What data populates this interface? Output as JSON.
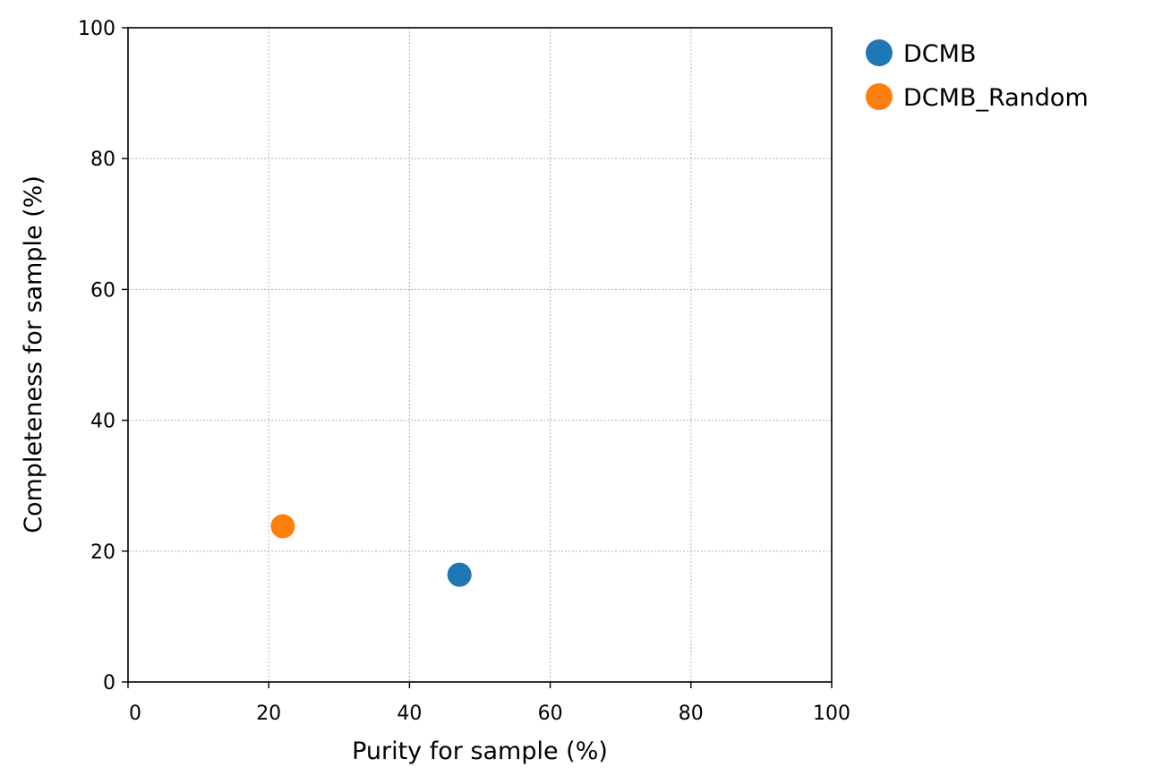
{
  "chart_data": {
    "type": "scatter",
    "title": "",
    "xlabel": "Purity for sample (%)",
    "ylabel": "Completeness for sample (%)",
    "xlim": [
      0,
      100
    ],
    "ylim": [
      0,
      100
    ],
    "xticks": [
      0,
      20,
      40,
      60,
      80,
      100
    ],
    "yticks": [
      0,
      20,
      40,
      60,
      80,
      100
    ],
    "grid": true,
    "legend_position": "outside-top-right",
    "series": [
      {
        "name": "DCMB",
        "color": "#1f77b4",
        "points": [
          {
            "x": 47.1,
            "y": 16.4
          }
        ]
      },
      {
        "name": "DCMB_Random",
        "color": "#ff7f0e",
        "points": [
          {
            "x": 22.0,
            "y": 23.8
          }
        ]
      }
    ]
  }
}
